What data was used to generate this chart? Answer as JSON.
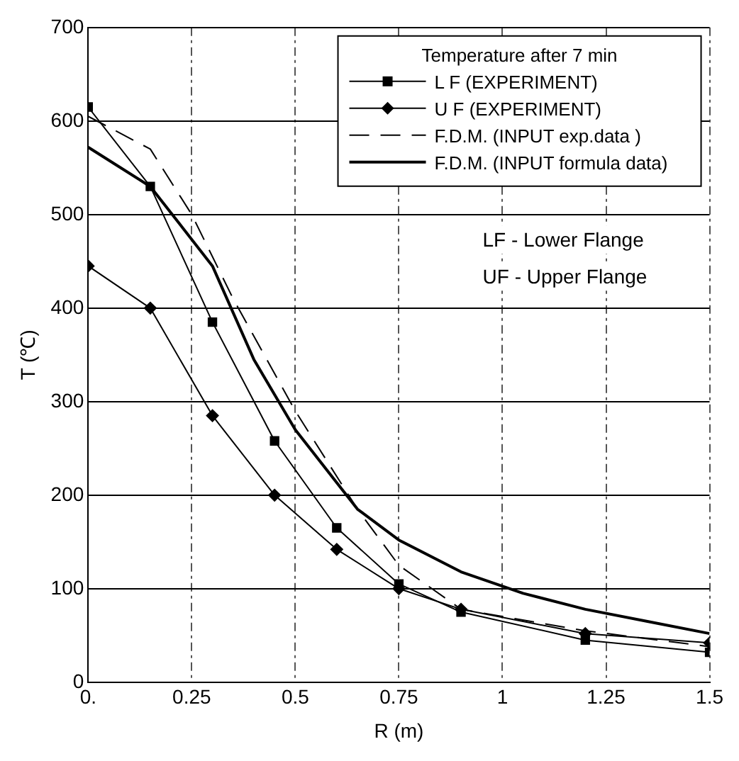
{
  "chart_data": {
    "type": "line",
    "legend_title": "Temperature after 7 min",
    "xlabel": "R (m)",
    "ylabel": "T (℃)",
    "annotations": [
      "LF - Lower Flange",
      "UF - Upper Flange"
    ],
    "xlim": [
      0,
      1.5
    ],
    "xticks": [
      {
        "value": 0,
        "label": "0."
      },
      0.25,
      0.5,
      0.75,
      1,
      1.25,
      1.5
    ],
    "ylim": [
      0,
      700
    ],
    "yticks": [
      0,
      100,
      200,
      300,
      400,
      500,
      600,
      700
    ],
    "grid": true,
    "legend": "top right",
    "series": [
      {
        "name": "L F (EXPERIMENT)",
        "color": "#000000",
        "marker": "square",
        "line_style": "solid",
        "x": [
          0,
          0.15,
          0.3,
          0.45,
          0.6,
          0.75,
          0.9,
          1.2,
          1.5
        ],
        "values": [
          615,
          530,
          385,
          258,
          165,
          105,
          75,
          45,
          32
        ]
      },
      {
        "name": "U F (EXPERIMENT)",
        "color": "#000000",
        "marker": "diamond",
        "line_style": "solid",
        "x": [
          0,
          0.15,
          0.3,
          0.45,
          0.6,
          0.75,
          0.9,
          1.2,
          1.5
        ],
        "values": [
          445,
          400,
          285,
          200,
          142,
          100,
          78,
          52,
          42
        ]
      },
      {
        "name": "F.D.M. (INPUT exp.data )",
        "color": "#000000",
        "marker": "none",
        "line_style": "dashed",
        "x": [
          0,
          0.15,
          0.25,
          0.35,
          0.5,
          0.65,
          0.75,
          0.9,
          1.2,
          1.5
        ],
        "values": [
          605,
          570,
          500,
          410,
          290,
          185,
          125,
          78,
          55,
          38
        ]
      },
      {
        "name": "F.D.M. (INPUT formula data)",
        "color": "#000000",
        "marker": "none",
        "line_style": "solid",
        "x": [
          0,
          0.15,
          0.3,
          0.4,
          0.5,
          0.65,
          0.75,
          0.9,
          1.05,
          1.2,
          1.35,
          1.5
        ],
        "values": [
          572,
          530,
          445,
          345,
          270,
          185,
          152,
          118,
          95,
          78,
          65,
          52
        ]
      }
    ]
  }
}
